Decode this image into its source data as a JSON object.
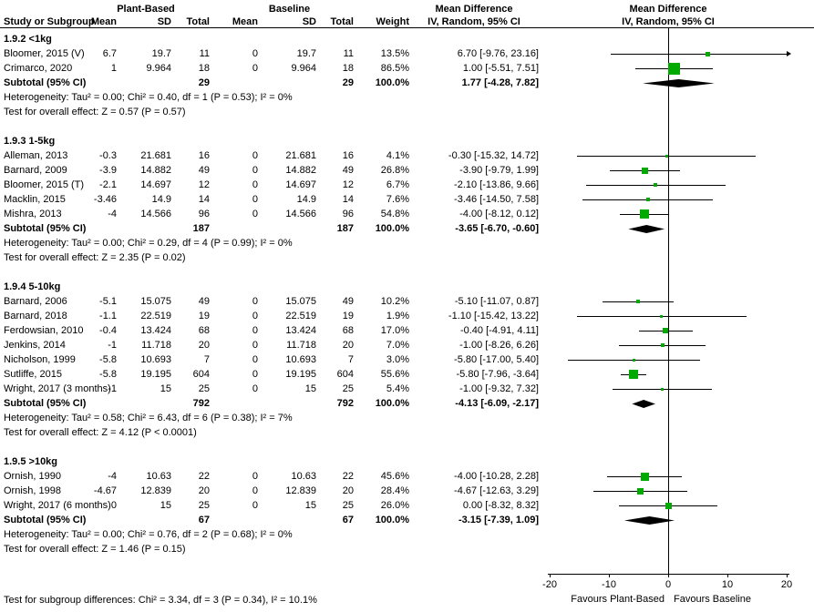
{
  "colors": {
    "marker": "#00AA00",
    "line": "#000000",
    "diamond": "#000000"
  },
  "header": {
    "group1": "Plant-Based",
    "group2": "Baseline",
    "md_text_col": "Mean Difference",
    "md_plot_col": "Mean Difference",
    "study": "Study or Subgroup",
    "mean": "Mean",
    "sd": "SD",
    "total": "Total",
    "weight": "Weight",
    "ci": "IV, Random, 95% CI"
  },
  "footer": "Test for subgroup differences: Chi² = 3.34, df = 3 (P = 0.34), I² = 10.1%",
  "chart_data": {
    "type": "forest",
    "effect_measure": "Mean Difference",
    "model": "IV, Random, 95% CI",
    "xlim": [
      -20,
      20
    ],
    "axis": {
      "ticks": [
        -20,
        -10,
        0,
        10,
        20
      ],
      "left_label": "Favours Plant-Based",
      "right_label": "Favours Baseline"
    },
    "subgroups": [
      {
        "title": "1.9.2 <1kg",
        "studies": [
          {
            "name": "Bloomer, 2015 (V)",
            "m1": "6.7",
            "sd1": "19.7",
            "n1": "11",
            "m2": "0",
            "sd2": "19.7",
            "n2": "11",
            "weight": "13.5%",
            "w": 13.5,
            "ci": "6.70 [-9.76, 23.16]",
            "est": 6.7,
            "lo": -9.76,
            "hi": 23.16
          },
          {
            "name": "Crimarco, 2020",
            "m1": "1",
            "sd1": "9.964",
            "n1": "18",
            "m2": "0",
            "sd2": "9.964",
            "n2": "18",
            "weight": "86.5%",
            "w": 86.5,
            "ci": "1.00 [-5.51, 7.51]",
            "est": 1.0,
            "lo": -5.51,
            "hi": 7.51
          }
        ],
        "subtotal": {
          "label": "Subtotal (95% CI)",
          "n1": "29",
          "n2": "29",
          "weight": "100.0%",
          "ci": "1.77 [-4.28, 7.82]",
          "est": 1.77,
          "lo": -4.28,
          "hi": 7.82
        },
        "heterogeneity": "Heterogeneity: Tau² = 0.00; Chi² = 0.40, df = 1 (P = 0.53); I² = 0%",
        "overall": "Test for overall effect: Z = 0.57 (P = 0.57)"
      },
      {
        "title": "1.9.3 1-5kg",
        "studies": [
          {
            "name": "Alleman, 2013",
            "m1": "-0.3",
            "sd1": "21.681",
            "n1": "16",
            "m2": "0",
            "sd2": "21.681",
            "n2": "16",
            "weight": "4.1%",
            "w": 4.1,
            "ci": "-0.30 [-15.32, 14.72]",
            "est": -0.3,
            "lo": -15.32,
            "hi": 14.72
          },
          {
            "name": "Barnard, 2009",
            "m1": "-3.9",
            "sd1": "14.882",
            "n1": "49",
            "m2": "0",
            "sd2": "14.882",
            "n2": "49",
            "weight": "26.8%",
            "w": 26.8,
            "ci": "-3.90 [-9.79, 1.99]",
            "est": -3.9,
            "lo": -9.79,
            "hi": 1.99
          },
          {
            "name": "Bloomer, 2015 (T)",
            "m1": "-2.1",
            "sd1": "14.697",
            "n1": "12",
            "m2": "0",
            "sd2": "14.697",
            "n2": "12",
            "weight": "6.7%",
            "w": 6.7,
            "ci": "-2.10 [-13.86, 9.66]",
            "est": -2.1,
            "lo": -13.86,
            "hi": 9.66
          },
          {
            "name": "Macklin, 2015",
            "m1": "-3.46",
            "sd1": "14.9",
            "n1": "14",
            "m2": "0",
            "sd2": "14.9",
            "n2": "14",
            "weight": "7.6%",
            "w": 7.6,
            "ci": "-3.46 [-14.50, 7.58]",
            "est": -3.46,
            "lo": -14.5,
            "hi": 7.58
          },
          {
            "name": "Mishra, 2013",
            "m1": "-4",
            "sd1": "14.566",
            "n1": "96",
            "m2": "0",
            "sd2": "14.566",
            "n2": "96",
            "weight": "54.8%",
            "w": 54.8,
            "ci": "-4.00 [-8.12, 0.12]",
            "est": -4.0,
            "lo": -8.12,
            "hi": 0.12
          }
        ],
        "subtotal": {
          "label": "Subtotal (95% CI)",
          "n1": "187",
          "n2": "187",
          "weight": "100.0%",
          "ci": "-3.65 [-6.70, -0.60]",
          "est": -3.65,
          "lo": -6.7,
          "hi": -0.6
        },
        "heterogeneity": "Heterogeneity: Tau² = 0.00; Chi² = 0.29, df = 4 (P = 0.99); I² = 0%",
        "overall": "Test for overall effect: Z = 2.35 (P = 0.02)"
      },
      {
        "title": "1.9.4 5-10kg",
        "studies": [
          {
            "name": "Barnard, 2006",
            "m1": "-5.1",
            "sd1": "15.075",
            "n1": "49",
            "m2": "0",
            "sd2": "15.075",
            "n2": "49",
            "weight": "10.2%",
            "w": 10.2,
            "ci": "-5.10 [-11.07, 0.87]",
            "est": -5.1,
            "lo": -11.07,
            "hi": 0.87
          },
          {
            "name": "Barnard, 2018",
            "m1": "-1.1",
            "sd1": "22.519",
            "n1": "19",
            "m2": "0",
            "sd2": "22.519",
            "n2": "19",
            "weight": "1.9%",
            "w": 1.9,
            "ci": "-1.10 [-15.42, 13.22]",
            "est": -1.1,
            "lo": -15.42,
            "hi": 13.22
          },
          {
            "name": "Ferdowsian, 2010",
            "m1": "-0.4",
            "sd1": "13.424",
            "n1": "68",
            "m2": "0",
            "sd2": "13.424",
            "n2": "68",
            "weight": "17.0%",
            "w": 17.0,
            "ci": "-0.40 [-4.91, 4.11]",
            "est": -0.4,
            "lo": -4.91,
            "hi": 4.11
          },
          {
            "name": "Jenkins, 2014",
            "m1": "-1",
            "sd1": "11.718",
            "n1": "20",
            "m2": "0",
            "sd2": "11.718",
            "n2": "20",
            "weight": "7.0%",
            "w": 7.0,
            "ci": "-1.00 [-8.26, 6.26]",
            "est": -1.0,
            "lo": -8.26,
            "hi": 6.26
          },
          {
            "name": "Nicholson, 1999",
            "m1": "-5.8",
            "sd1": "10.693",
            "n1": "7",
            "m2": "0",
            "sd2": "10.693",
            "n2": "7",
            "weight": "3.0%",
            "w": 3.0,
            "ci": "-5.80 [-17.00, 5.40]",
            "est": -5.8,
            "lo": -17.0,
            "hi": 5.4
          },
          {
            "name": "Sutliffe, 2015",
            "m1": "-5.8",
            "sd1": "19.195",
            "n1": "604",
            "m2": "0",
            "sd2": "19.195",
            "n2": "604",
            "weight": "55.6%",
            "w": 55.6,
            "ci": "-5.80 [-7.96, -3.64]",
            "est": -5.8,
            "lo": -7.96,
            "hi": -3.64
          },
          {
            "name": "Wright, 2017 (3 months)",
            "m1": "-1",
            "sd1": "15",
            "n1": "25",
            "m2": "0",
            "sd2": "15",
            "n2": "25",
            "weight": "5.4%",
            "w": 5.4,
            "ci": "-1.00 [-9.32, 7.32]",
            "est": -1.0,
            "lo": -9.32,
            "hi": 7.32
          }
        ],
        "subtotal": {
          "label": "Subtotal (95% CI)",
          "n1": "792",
          "n2": "792",
          "weight": "100.0%",
          "ci": "-4.13 [-6.09, -2.17]",
          "est": -4.13,
          "lo": -6.09,
          "hi": -2.17
        },
        "heterogeneity": "Heterogeneity: Tau² = 0.58; Chi² = 6.43, df = 6 (P = 0.38); I² = 7%",
        "overall": "Test for overall effect: Z = 4.12 (P < 0.0001)"
      },
      {
        "title": "1.9.5 >10kg",
        "studies": [
          {
            "name": "Ornish, 1990",
            "m1": "-4",
            "sd1": "10.63",
            "n1": "22",
            "m2": "0",
            "sd2": "10.63",
            "n2": "22",
            "weight": "45.6%",
            "w": 45.6,
            "ci": "-4.00 [-10.28, 2.28]",
            "est": -4.0,
            "lo": -10.28,
            "hi": 2.28
          },
          {
            "name": "Ornish, 1998",
            "m1": "-4.67",
            "sd1": "12.839",
            "n1": "20",
            "m2": "0",
            "sd2": "12.839",
            "n2": "20",
            "weight": "28.4%",
            "w": 28.4,
            "ci": "-4.67 [-12.63, 3.29]",
            "est": -4.67,
            "lo": -12.63,
            "hi": 3.29
          },
          {
            "name": "Wright, 2017 (6 months)",
            "m1": "0",
            "sd1": "15",
            "n1": "25",
            "m2": "0",
            "sd2": "15",
            "n2": "25",
            "weight": "26.0%",
            "w": 26.0,
            "ci": "0.00 [-8.32, 8.32]",
            "est": 0.0,
            "lo": -8.32,
            "hi": 8.32
          }
        ],
        "subtotal": {
          "label": "Subtotal (95% CI)",
          "n1": "67",
          "n2": "67",
          "weight": "100.0%",
          "ci": "-3.15 [-7.39, 1.09]",
          "est": -3.15,
          "lo": -7.39,
          "hi": 1.09
        },
        "heterogeneity": "Heterogeneity: Tau² = 0.00; Chi² = 0.76, df = 2 (P = 0.68); I² = 0%",
        "overall": "Test for overall effect: Z = 1.46 (P = 0.15)"
      }
    ]
  }
}
